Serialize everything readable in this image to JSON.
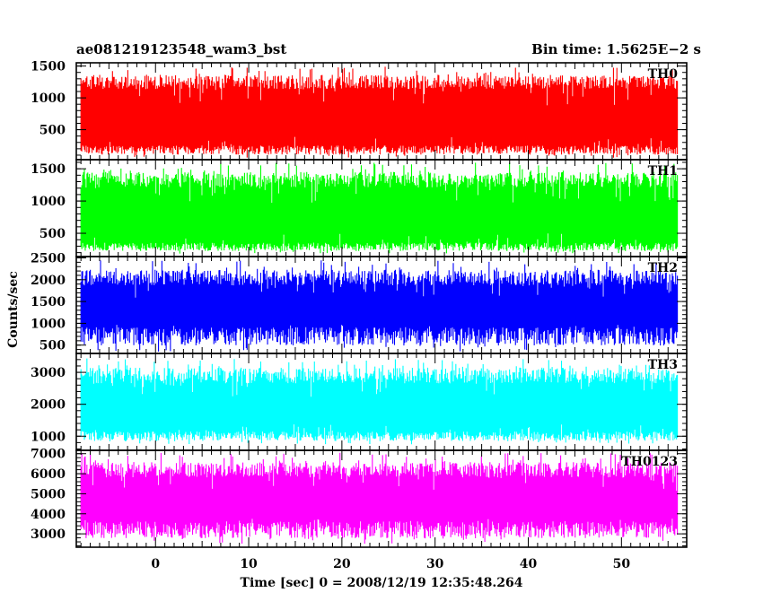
{
  "header": {
    "title": "ae081219123548_wam3_bst",
    "bin_time": "Bin time: 1.5625E−2 s"
  },
  "chart_data": {
    "type": "line",
    "xlabel": "Time [sec] 0 = 2008/12/19 12:35:48.264",
    "ylabel": "Counts/sec",
    "xlim": [
      -8.5,
      57
    ],
    "data_x_range": [
      -8,
      56
    ],
    "x_major_ticks": [
      0,
      10,
      20,
      30,
      40,
      50
    ],
    "x_tick_labels": [
      "0",
      "10",
      "20",
      "30",
      "40",
      "50"
    ],
    "panels": [
      {
        "name": "TH0",
        "color": "#ff0000",
        "ylim": [
          50,
          1530
        ],
        "y_tick_values": [
          500,
          1000,
          1500
        ],
        "y_tick_labels": [
          "500",
          "1000",
          "1500"
        ],
        "y_minor_step": 100,
        "envelope": {
          "low_mean": 180,
          "low_min": 60,
          "high_mean": 1250,
          "high_max": 1500
        }
      },
      {
        "name": "TH1",
        "color": "#00ff00",
        "ylim": [
          160,
          1620
        ],
        "y_tick_values": [
          500,
          1000,
          1500
        ],
        "y_tick_labels": [
          "500",
          "1000",
          "1500"
        ],
        "y_minor_step": 100,
        "envelope": {
          "low_mean": 290,
          "low_min": 180,
          "high_mean": 1330,
          "high_max": 1600
        }
      },
      {
        "name": "TH2",
        "color": "#0000ff",
        "ylim": [
          340,
          2500
        ],
        "y_tick_values": [
          500,
          1000,
          1500,
          2000,
          2500
        ],
        "y_tick_labels": [
          "500",
          "1000",
          "1500",
          "2000",
          "2500"
        ],
        "y_minor_step": 100,
        "envelope": {
          "low_mean": 700,
          "low_min": 350,
          "high_mean": 2050,
          "high_max": 2450
        }
      },
      {
        "name": "TH3",
        "color": "#00ffff",
        "ylim": [
          600,
          3550
        ],
        "y_tick_values": [
          1000,
          2000,
          3000
        ],
        "y_tick_labels": [
          "1000",
          "2000",
          "3000"
        ],
        "y_minor_step": 200,
        "envelope": {
          "low_mean": 1000,
          "low_min": 750,
          "high_mean": 2900,
          "high_max": 3450
        }
      },
      {
        "name": "TH0123",
        "color": "#ff00ff",
        "ylim": [
          2400,
          7100
        ],
        "y_tick_values": [
          3000,
          4000,
          5000,
          6000,
          7000
        ],
        "y_tick_labels": [
          "3000",
          "4000",
          "5000",
          "6000",
          "7000"
        ],
        "y_minor_step": 200,
        "envelope": {
          "low_mean": 3200,
          "low_min": 2500,
          "high_mean": 6200,
          "high_max": 7050
        }
      }
    ]
  }
}
